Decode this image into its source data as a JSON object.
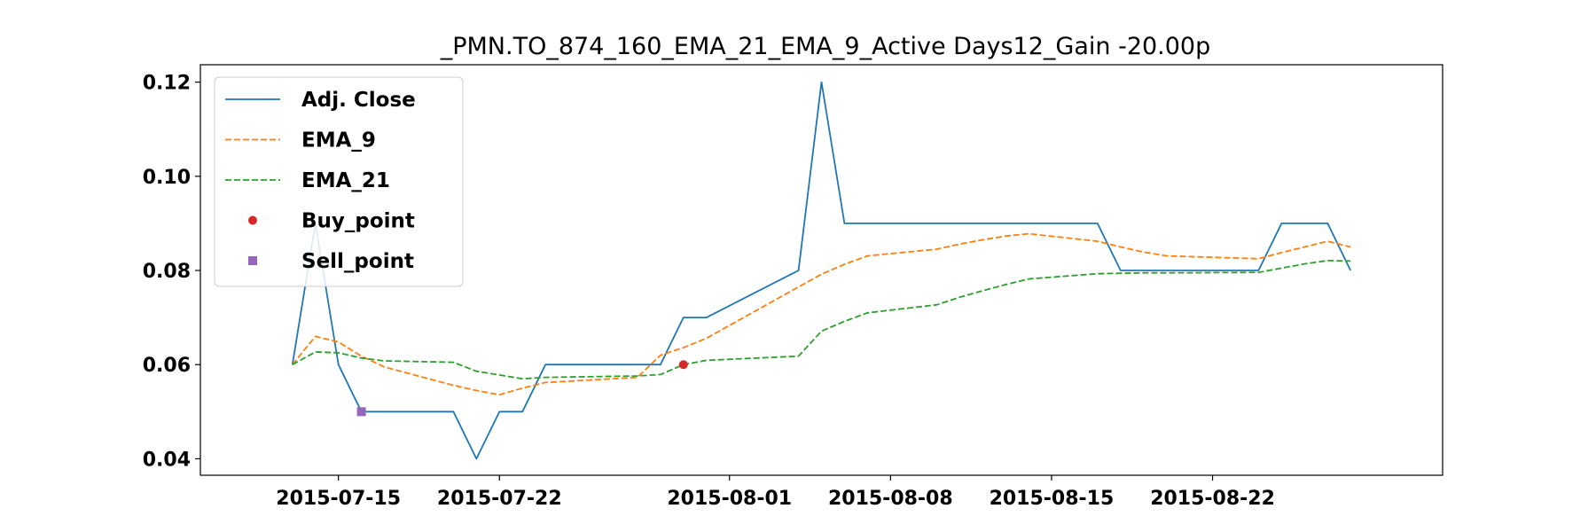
{
  "chart_data": {
    "type": "line",
    "title": "_PMN.TO_874_160_EMA_21_EMA_9_Active Days12_Gain -20.00p",
    "xlabel": "",
    "ylabel": "",
    "x": [
      "2015-07-13",
      "2015-07-14",
      "2015-07-15",
      "2015-07-16",
      "2015-07-17",
      "2015-07-20",
      "2015-07-21",
      "2015-07-22",
      "2015-07-23",
      "2015-07-24",
      "2015-07-28",
      "2015-07-29",
      "2015-07-30",
      "2015-07-31",
      "2015-08-04",
      "2015-08-05",
      "2015-08-06",
      "2015-08-07",
      "2015-08-10",
      "2015-08-11",
      "2015-08-12",
      "2015-08-13",
      "2015-08-14",
      "2015-08-17",
      "2015-08-18",
      "2015-08-19",
      "2015-08-20",
      "2015-08-24",
      "2015-08-25",
      "2015-08-26",
      "2015-08-27",
      "2015-08-28"
    ],
    "series": [
      {
        "name": "Adj. Close",
        "style": "solid",
        "color": "#1f77b4",
        "values": [
          0.06,
          0.09,
          0.06,
          0.05,
          0.05,
          0.05,
          0.04,
          0.05,
          0.05,
          0.06,
          0.06,
          0.06,
          0.07,
          0.07,
          0.08,
          0.12,
          0.09,
          0.09,
          0.09,
          0.09,
          0.09,
          0.09,
          0.09,
          0.09,
          0.08,
          0.08,
          0.08,
          0.08,
          0.09,
          0.09,
          0.09,
          0.08
        ]
      },
      {
        "name": "EMA_9",
        "style": "dashed",
        "color": "#ff7f0e",
        "values": [
          0.06,
          0.066,
          0.0648,
          0.0618,
          0.0595,
          0.0556,
          0.0545,
          0.0536,
          0.055,
          0.0562,
          0.0573,
          0.062,
          0.0636,
          0.0656,
          0.0765,
          0.0792,
          0.0813,
          0.0831,
          0.0845,
          0.0856,
          0.0865,
          0.0873,
          0.0878,
          0.0862,
          0.085,
          0.0839,
          0.0831,
          0.0825,
          0.0838,
          0.085,
          0.0862,
          0.085
        ]
      },
      {
        "name": "EMA_21",
        "style": "dashed",
        "color": "#2ca02c",
        "values": [
          0.06,
          0.0627,
          0.0625,
          0.0614,
          0.0608,
          0.0605,
          0.0586,
          0.0578,
          0.057,
          0.0573,
          0.0576,
          0.0579,
          0.06,
          0.0609,
          0.0618,
          0.0671,
          0.0692,
          0.071,
          0.0727,
          0.0743,
          0.0757,
          0.077,
          0.0782,
          0.0793,
          0.0794,
          0.0795,
          0.0795,
          0.0796,
          0.0805,
          0.0814,
          0.0821,
          0.082
        ]
      }
    ],
    "markers": [
      {
        "name": "Buy_point",
        "shape": "circle",
        "color": "#d62728",
        "x": "2015-07-30",
        "y": 0.06
      },
      {
        "name": "Sell_point",
        "shape": "square",
        "color": "#9467bd",
        "x": "2015-07-16",
        "y": 0.05
      }
    ],
    "x_ticks": [
      "2015-07-15",
      "2015-07-22",
      "2015-08-01",
      "2015-08-08",
      "2015-08-15",
      "2015-08-22"
    ],
    "xlim": [
      "2015-07-09",
      "2015-09-01"
    ],
    "y_ticks": [
      "0.04",
      "0.06",
      "0.08",
      "0.10",
      "0.12"
    ],
    "ylim": [
      0.0365,
      0.1237
    ],
    "grid": false,
    "legend_position": "top-left"
  }
}
